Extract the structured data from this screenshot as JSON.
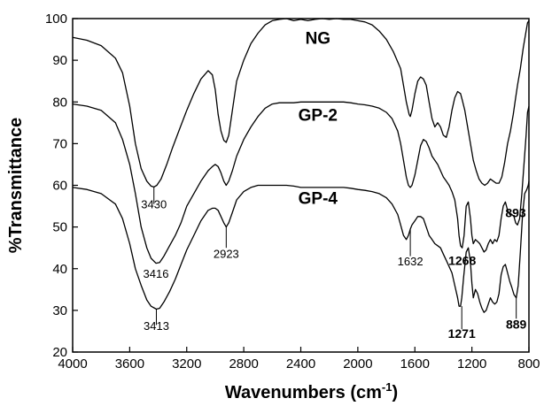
{
  "chart_data": {
    "type": "line",
    "xlabel": "Wavenumbers (cm",
    "xlabel_sup": "-1",
    "xlabel_close": ")",
    "ylabel": "%Transmittance",
    "xlim": [
      4000,
      800
    ],
    "ylim": [
      20,
      100
    ],
    "x_reversed": true,
    "x_ticks": [
      4000,
      3600,
      3200,
      2800,
      2400,
      2000,
      1600,
      1200,
      800
    ],
    "y_ticks": [
      20,
      30,
      40,
      50,
      60,
      70,
      80,
      90,
      100
    ],
    "grid": false,
    "series": [
      {
        "name": "NG",
        "x": [
          4000,
          3900,
          3800,
          3700,
          3650,
          3600,
          3560,
          3520,
          3480,
          3450,
          3430,
          3410,
          3380,
          3340,
          3300,
          3250,
          3200,
          3150,
          3100,
          3050,
          3020,
          3000,
          2980,
          2960,
          2940,
          2923,
          2905,
          2880,
          2850,
          2800,
          2750,
          2700,
          2650,
          2600,
          2550,
          2500,
          2450,
          2400,
          2350,
          2300,
          2250,
          2200,
          2150,
          2100,
          2050,
          2000,
          1950,
          1900,
          1850,
          1800,
          1750,
          1700,
          1680,
          1660,
          1640,
          1632,
          1620,
          1600,
          1580,
          1560,
          1540,
          1520,
          1500,
          1480,
          1460,
          1440,
          1420,
          1400,
          1380,
          1360,
          1340,
          1320,
          1300,
          1280,
          1268,
          1250,
          1230,
          1210,
          1190,
          1170,
          1150,
          1130,
          1110,
          1090,
          1070,
          1050,
          1030,
          1010,
          990,
          970,
          950,
          930,
          910,
          893,
          880,
          860,
          840,
          820,
          810,
          800
        ],
        "y": [
          95.5,
          94.8,
          93.5,
          90.5,
          87,
          79,
          70,
          64,
          61,
          59.8,
          59.6,
          60,
          61.5,
          65,
          69,
          73.5,
          78,
          82,
          85.5,
          87.5,
          86.5,
          83,
          77,
          73,
          70.8,
          70.3,
          72,
          78,
          85,
          90,
          94,
          96.5,
          98.5,
          99.5,
          99.8,
          100,
          99.5,
          99.8,
          99.5,
          99.8,
          100,
          99.8,
          100,
          99.8,
          99.8,
          99.5,
          99.2,
          98.5,
          97,
          95,
          92,
          88,
          84,
          80,
          77,
          76.5,
          78,
          82,
          85,
          86,
          85.5,
          84,
          80,
          76,
          74,
          75,
          74,
          72,
          71.5,
          74,
          78,
          81,
          82.5,
          82,
          80.5,
          78,
          74,
          70,
          66,
          63.5,
          61.5,
          60.5,
          60,
          60.5,
          61.5,
          61,
          60.5,
          60.5,
          62,
          65.5,
          70,
          73,
          77,
          81,
          84,
          88,
          93,
          97,
          99,
          99.5
        ]
      },
      {
        "name": "GP-2",
        "x": [
          4000,
          3900,
          3800,
          3700,
          3650,
          3600,
          3560,
          3520,
          3480,
          3450,
          3416,
          3390,
          3360,
          3320,
          3280,
          3240,
          3200,
          3150,
          3100,
          3050,
          3020,
          3000,
          2980,
          2960,
          2940,
          2923,
          2905,
          2880,
          2850,
          2800,
          2750,
          2700,
          2650,
          2600,
          2550,
          2500,
          2450,
          2400,
          2350,
          2300,
          2250,
          2200,
          2150,
          2100,
          2050,
          2000,
          1950,
          1900,
          1850,
          1800,
          1760,
          1720,
          1700,
          1680,
          1660,
          1645,
          1632,
          1620,
          1600,
          1580,
          1560,
          1540,
          1520,
          1500,
          1480,
          1460,
          1440,
          1420,
          1400,
          1380,
          1360,
          1340,
          1320,
          1300,
          1290,
          1280,
          1268,
          1255,
          1240,
          1225,
          1210,
          1200,
          1190,
          1175,
          1160,
          1145,
          1130,
          1115,
          1100,
          1085,
          1070,
          1055,
          1040,
          1025,
          1010,
          995,
          980,
          965,
          950,
          935,
          920,
          905,
          893,
          880,
          865,
          850,
          835,
          820,
          810,
          800
        ],
        "y": [
          79.5,
          79,
          78,
          75,
          71,
          65,
          58,
          50,
          45,
          42.5,
          41.3,
          41.5,
          43,
          45.5,
          48,
          51,
          55,
          58,
          61,
          63.5,
          64.5,
          65,
          64.5,
          63,
          61,
          60,
          61,
          63.5,
          67,
          71,
          74,
          76.5,
          78.5,
          79.5,
          79.8,
          79.8,
          79.8,
          80,
          80,
          80,
          80,
          80,
          80,
          80,
          79.8,
          79.5,
          79.3,
          79,
          78.5,
          77.5,
          76,
          73,
          70,
          66,
          62,
          60,
          59.5,
          60,
          62.5,
          66,
          69.5,
          71,
          70.5,
          69,
          67,
          66,
          65,
          63.5,
          62,
          61,
          60,
          58.5,
          56.5,
          52,
          48,
          45.5,
          45,
          48,
          55,
          56,
          52,
          48,
          46,
          47,
          46.5,
          46,
          45,
          44,
          44.5,
          46,
          47,
          46,
          47,
          46.5,
          48,
          52,
          55,
          56,
          54,
          53,
          53,
          52.5,
          51,
          50.5,
          52,
          58,
          65,
          72,
          77.5,
          79
        ]
      },
      {
        "name": "GP-4",
        "x": [
          4000,
          3900,
          3800,
          3700,
          3650,
          3600,
          3560,
          3520,
          3480,
          3450,
          3413,
          3390,
          3360,
          3320,
          3280,
          3240,
          3200,
          3150,
          3100,
          3050,
          3020,
          3000,
          2980,
          2960,
          2940,
          2923,
          2905,
          2880,
          2850,
          2800,
          2750,
          2700,
          2650,
          2600,
          2550,
          2500,
          2450,
          2400,
          2350,
          2300,
          2250,
          2200,
          2150,
          2100,
          2050,
          2000,
          1950,
          1900,
          1850,
          1800,
          1760,
          1720,
          1700,
          1680,
          1660,
          1645,
          1632,
          1620,
          1600,
          1580,
          1560,
          1540,
          1520,
          1500,
          1480,
          1460,
          1440,
          1420,
          1400,
          1380,
          1360,
          1340,
          1320,
          1300,
          1290,
          1280,
          1271,
          1258,
          1240,
          1225,
          1210,
          1200,
          1190,
          1175,
          1160,
          1145,
          1130,
          1115,
          1100,
          1085,
          1070,
          1055,
          1040,
          1025,
          1010,
          995,
          980,
          965,
          950,
          935,
          920,
          905,
          889,
          875,
          860,
          845,
          830,
          815,
          805,
          800
        ],
        "y": [
          59.5,
          59,
          58,
          55.5,
          52,
          46,
          40,
          36,
          32.5,
          31,
          30.3,
          30.5,
          32,
          34.5,
          37.5,
          41,
          44.5,
          48,
          51.5,
          54,
          54.5,
          54.5,
          54,
          52.5,
          51,
          50,
          51,
          53.5,
          56.5,
          58.5,
          59.5,
          60,
          60,
          60,
          60,
          60,
          59.8,
          59.5,
          59.5,
          59.5,
          59.5,
          59.5,
          59.5,
          59.5,
          59.3,
          59,
          58.8,
          58.5,
          58,
          57,
          55.5,
          53,
          50.5,
          48,
          47,
          48,
          49.5,
          50.5,
          51.5,
          52.5,
          52.5,
          52,
          50,
          48,
          47,
          46,
          45.5,
          45,
          43.5,
          42,
          40.5,
          39,
          36,
          33,
          31,
          31,
          33,
          38,
          44,
          45,
          41.5,
          36.5,
          33,
          35,
          34,
          32,
          30.5,
          29.5,
          30,
          31.5,
          33,
          32,
          31.5,
          32,
          34,
          38.5,
          40.5,
          41,
          39,
          37,
          35.5,
          33.8,
          33,
          36,
          44,
          53,
          58,
          59,
          60,
          61
        ]
      }
    ],
    "annotations": [
      {
        "text": "3430",
        "x": 3430,
        "y_from": 59.6,
        "y_to": 55.5,
        "label_y": 54.5,
        "bold": false
      },
      {
        "text": "3416",
        "x": 3416,
        "y_from": 41.3,
        "y_to": 41.3,
        "label_y": 37.8,
        "bold": false
      },
      {
        "text": "2923",
        "x": 2923,
        "y_from": 50,
        "y_to": 45,
        "label_y": 42.6,
        "bold": false
      },
      {
        "text": "3413",
        "x": 3413,
        "y_from": 30.3,
        "y_to": 26.5,
        "label_y": 25.3,
        "bold": false
      },
      {
        "text": "1632",
        "x": 1632,
        "y_from": 49.5,
        "y_to": 43,
        "label_y": 40.8,
        "bold": false
      },
      {
        "text": "1268",
        "x": 1268,
        "y_from": 45,
        "y_to": 45,
        "label_y": 40.9,
        "bold": true
      },
      {
        "text": "1271",
        "x": 1271,
        "y_from": 31,
        "y_to": 25.5,
        "label_y": 23.4,
        "bold": true
      },
      {
        "text": "893",
        "x": 893,
        "y_from": 50.5,
        "y_to": 50.5,
        "label_y": 52.4,
        "bold": true
      },
      {
        "text": "889",
        "x": 889,
        "y_from": 33,
        "y_to": 28,
        "label_y": 25.6,
        "bold": true
      }
    ],
    "series_labels": [
      {
        "text": "NG",
        "x": 2280,
        "y": 94
      },
      {
        "text": "GP-2",
        "x": 2280,
        "y": 75.5
      },
      {
        "text": "GP-4",
        "x": 2280,
        "y": 55.5
      }
    ]
  }
}
